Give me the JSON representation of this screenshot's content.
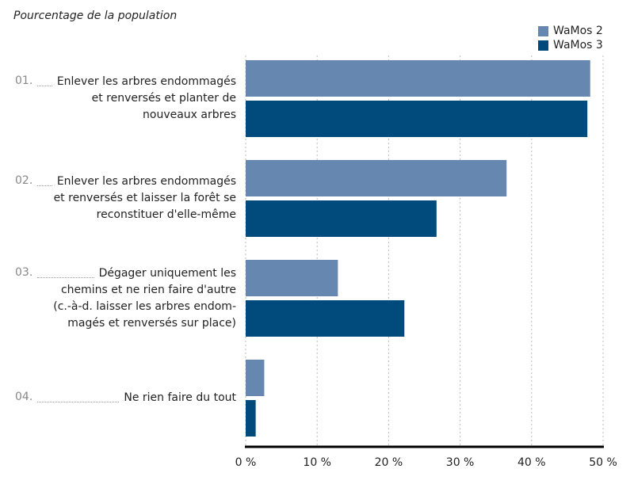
{
  "chart_data": {
    "type": "bar",
    "orientation": "horizontal",
    "subtitle": "Pourcentage de la population",
    "categories": [
      {
        "num": "01.",
        "label": "Enlever les arbres endommagés et renversés et planter de nouveaux arbres",
        "lines": [
          "Enlever les arbres endommagés",
          "et renversés et planter de",
          "nouveaux arbres"
        ]
      },
      {
        "num": "02.",
        "label": "Enlever les arbres endommagés et renversés et laisser la forêt se reconstituer d'elle-même",
        "lines": [
          "Enlever les arbres endommagés",
          "et renversés et laisser la forêt se",
          "reconstituer d'elle-même"
        ]
      },
      {
        "num": "03.",
        "label": "Dégager uniquement les chemins et ne rien faire d'autre (c.-à-d. laisser les arbres endommagés et renversés sur place)",
        "lines": [
          "Dégager uniquement les",
          "chemins et ne rien faire d'autre",
          "(c.-à-d. laisser les arbres endom-",
          "magés et renversés sur place)"
        ]
      },
      {
        "num": "04.",
        "label": "Ne rien faire du tout",
        "lines": [
          "Ne rien faire du tout"
        ]
      }
    ],
    "series": [
      {
        "name": "WaMos 2",
        "color": "#6688b0",
        "values": [
          48.2,
          36.5,
          12.9,
          2.6
        ]
      },
      {
        "name": "WaMos 3",
        "color": "#004b7c",
        "values": [
          47.8,
          26.7,
          22.2,
          1.4
        ]
      }
    ],
    "xlim": [
      0,
      50
    ],
    "xticks": [
      "0 %",
      "10 %",
      "20 %",
      "30 %",
      "40 %",
      "50 %"
    ],
    "grid": true,
    "legend": "top-right"
  }
}
